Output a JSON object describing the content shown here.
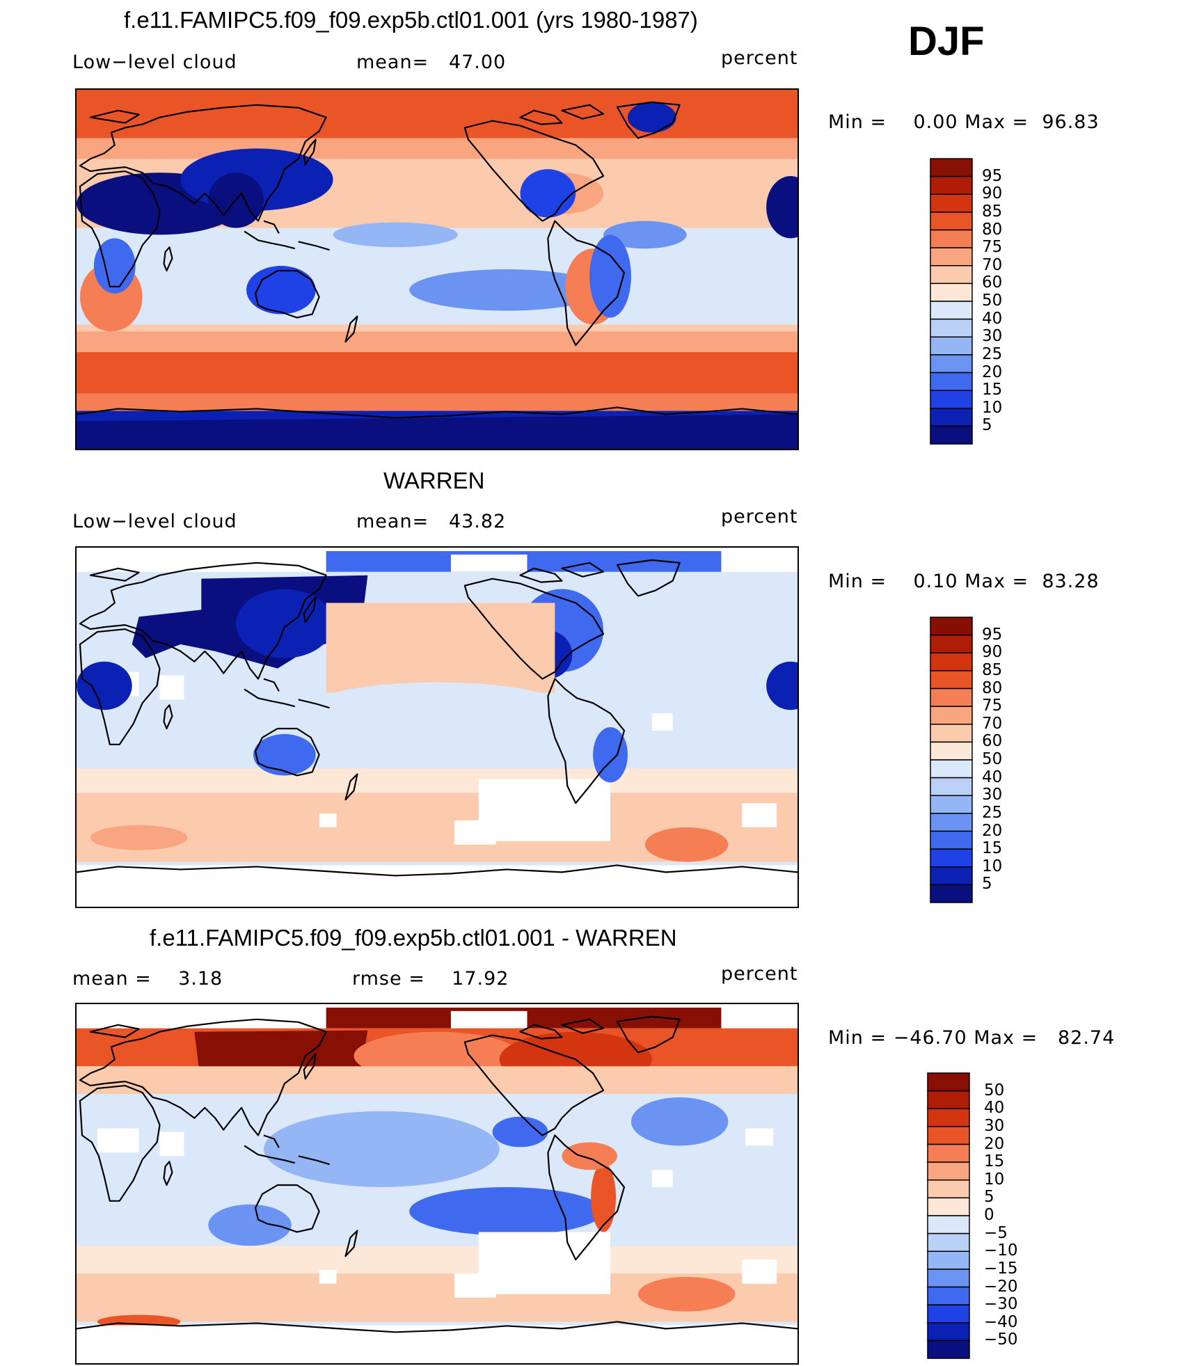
{
  "header": {
    "season": "DJF"
  },
  "colors": {
    "seq": [
      "#0a0f80",
      "#0a21b4",
      "#1e42e6",
      "#3f6af0",
      "#6a93f2",
      "#95b6f4",
      "#bad0f6",
      "#dbe8fa",
      "#fde7d6",
      "#fccbae",
      "#f9a57f",
      "#f57e55",
      "#ea5528",
      "#d2350f",
      "#b01d07",
      "#870f03"
    ],
    "diff": [
      "#0a0f80",
      "#0a21b4",
      "#1e42e6",
      "#3f6af0",
      "#6a93f2",
      "#95b6f4",
      "#bad0f6",
      "#dbe8fa",
      "#fde7d6",
      "#fccbae",
      "#f9a57f",
      "#f57e55",
      "#ea5528",
      "#d2350f",
      "#b01d07",
      "#870f03"
    ]
  },
  "panels": [
    {
      "title": "f.e11.FAMIPC5.f09_f09.exp5b.ctl01.001 (yrs 1980-1987)",
      "left_text": "Low−level cloud",
      "mid_text": "mean=   47.00",
      "units": "percent",
      "minmax": "Min =    0.00 Max =  96.83",
      "colorbar_labels": [
        "95",
        "90",
        "85",
        "80",
        "75",
        "70",
        "60",
        "50",
        "40",
        "30",
        "25",
        "20",
        "15",
        "10",
        "5"
      ]
    },
    {
      "title": "WARREN",
      "left_text": "Low−level cloud",
      "mid_text": "mean=   43.82",
      "units": "percent",
      "minmax": "Min =    0.10 Max =  83.28",
      "colorbar_labels": [
        "95",
        "90",
        "85",
        "80",
        "75",
        "70",
        "60",
        "50",
        "40",
        "30",
        "25",
        "20",
        "15",
        "10",
        "5"
      ]
    },
    {
      "title": "f.e11.FAMIPC5.f09_f09.exp5b.ctl01.001 - WARREN",
      "left_text": "mean =    3.18",
      "mid_text": "rmse =    17.92",
      "units": "percent",
      "minmax": "Min = −46.70 Max =   82.74",
      "colorbar_labels": [
        "50",
        "40",
        "30",
        "20",
        "15",
        "10",
        "5",
        "0",
        "−5",
        "−10",
        "−15",
        "−20",
        "−30",
        "−40",
        "−50"
      ]
    }
  ]
}
